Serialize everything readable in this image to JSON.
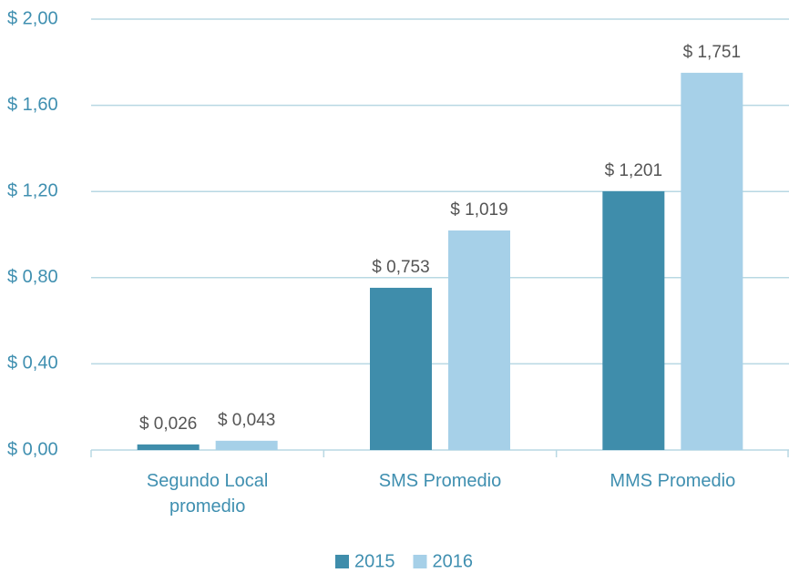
{
  "chart_data": {
    "type": "bar",
    "categories": [
      "Segundo Local promedio",
      "SMS Promedio",
      "MMS Promedio"
    ],
    "series": [
      {
        "name": "2015",
        "color": "#3f8dab",
        "values": [
          0.026,
          0.753,
          1.201
        ],
        "value_labels": [
          "$ 0,026",
          "$ 0,753",
          "$ 1,201"
        ]
      },
      {
        "name": "2016",
        "color": "#a6d0e8",
        "values": [
          0.043,
          1.019,
          1.751
        ],
        "value_labels": [
          "$ 0,043",
          "$ 1,019",
          "$ 1,751"
        ]
      }
    ],
    "ylim": [
      0,
      2
    ],
    "yticks": [
      {
        "value": 0,
        "label": "$ 0,00"
      },
      {
        "value": 0.4,
        "label": "$ 0,40"
      },
      {
        "value": 0.8,
        "label": "$ 0,80"
      },
      {
        "value": 1.2,
        "label": "$ 1,20"
      },
      {
        "value": 1.6,
        "label": "$ 1,60"
      },
      {
        "value": 2,
        "label": "$ 2,00"
      }
    ],
    "grid": true,
    "legend": "bottom"
  }
}
